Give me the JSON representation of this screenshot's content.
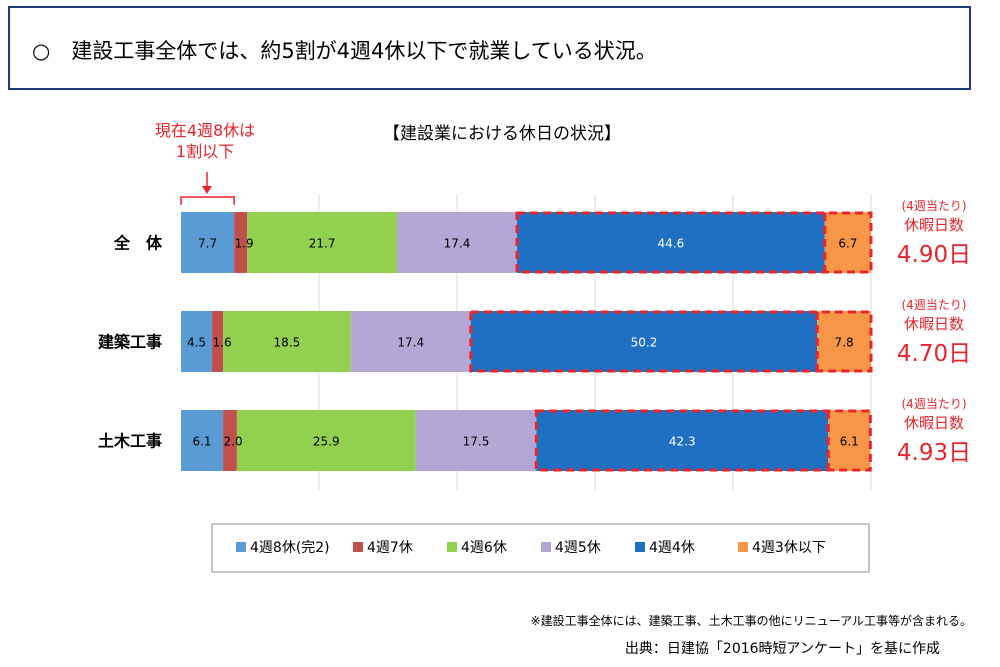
{
  "header": {
    "text": "○　建設工事全体では、約5割が4週4休以下で就業している状況。"
  },
  "callout": {
    "line1": "現在4週8休は",
    "line2": "1割以下"
  },
  "footnote": "※建設工事全体には、建築工事、土木工事の他にリニューアル工事等が含まれる。",
  "source": "出典：日建協「2016時短アンケート」を基に作成",
  "chart_data": {
    "type": "bar",
    "orientation": "horizontal",
    "stacked": true,
    "title": "【建設業における休日の状況】",
    "categories": [
      "全　体",
      "建築工事",
      "土木工事"
    ],
    "series": [
      {
        "name": "4週8休(完2)",
        "color": "#5b9bd5",
        "values": [
          7.7,
          4.5,
          6.1
        ]
      },
      {
        "name": "4週7休",
        "color": "#c0504d",
        "values": [
          1.9,
          1.6,
          2.0
        ]
      },
      {
        "name": "4週6休",
        "color": "#92d050",
        "values": [
          21.7,
          18.5,
          25.9
        ]
      },
      {
        "name": "4週5休",
        "color": "#b4a7d6",
        "values": [
          17.4,
          17.4,
          17.5
        ]
      },
      {
        "name": "4週4休",
        "color": "#1f6fc2",
        "values": [
          44.6,
          50.2,
          42.3
        ]
      },
      {
        "name": "4週3休以下",
        "color": "#f79646",
        "values": [
          6.7,
          7.8,
          6.1
        ]
      }
    ],
    "xlim": [
      0,
      100
    ],
    "grid": true,
    "legend_position": "bottom",
    "side_labels": [
      {
        "sub": "(4週当たり)",
        "label": "休暇日数",
        "value": "4.90日"
      },
      {
        "sub": "(4週当たり)",
        "label": "休暇日数",
        "value": "4.70日"
      },
      {
        "sub": "(4週当たり)",
        "label": "休暇日数",
        "value": "4.93日"
      }
    ],
    "highlight_color": "#e8242c"
  }
}
